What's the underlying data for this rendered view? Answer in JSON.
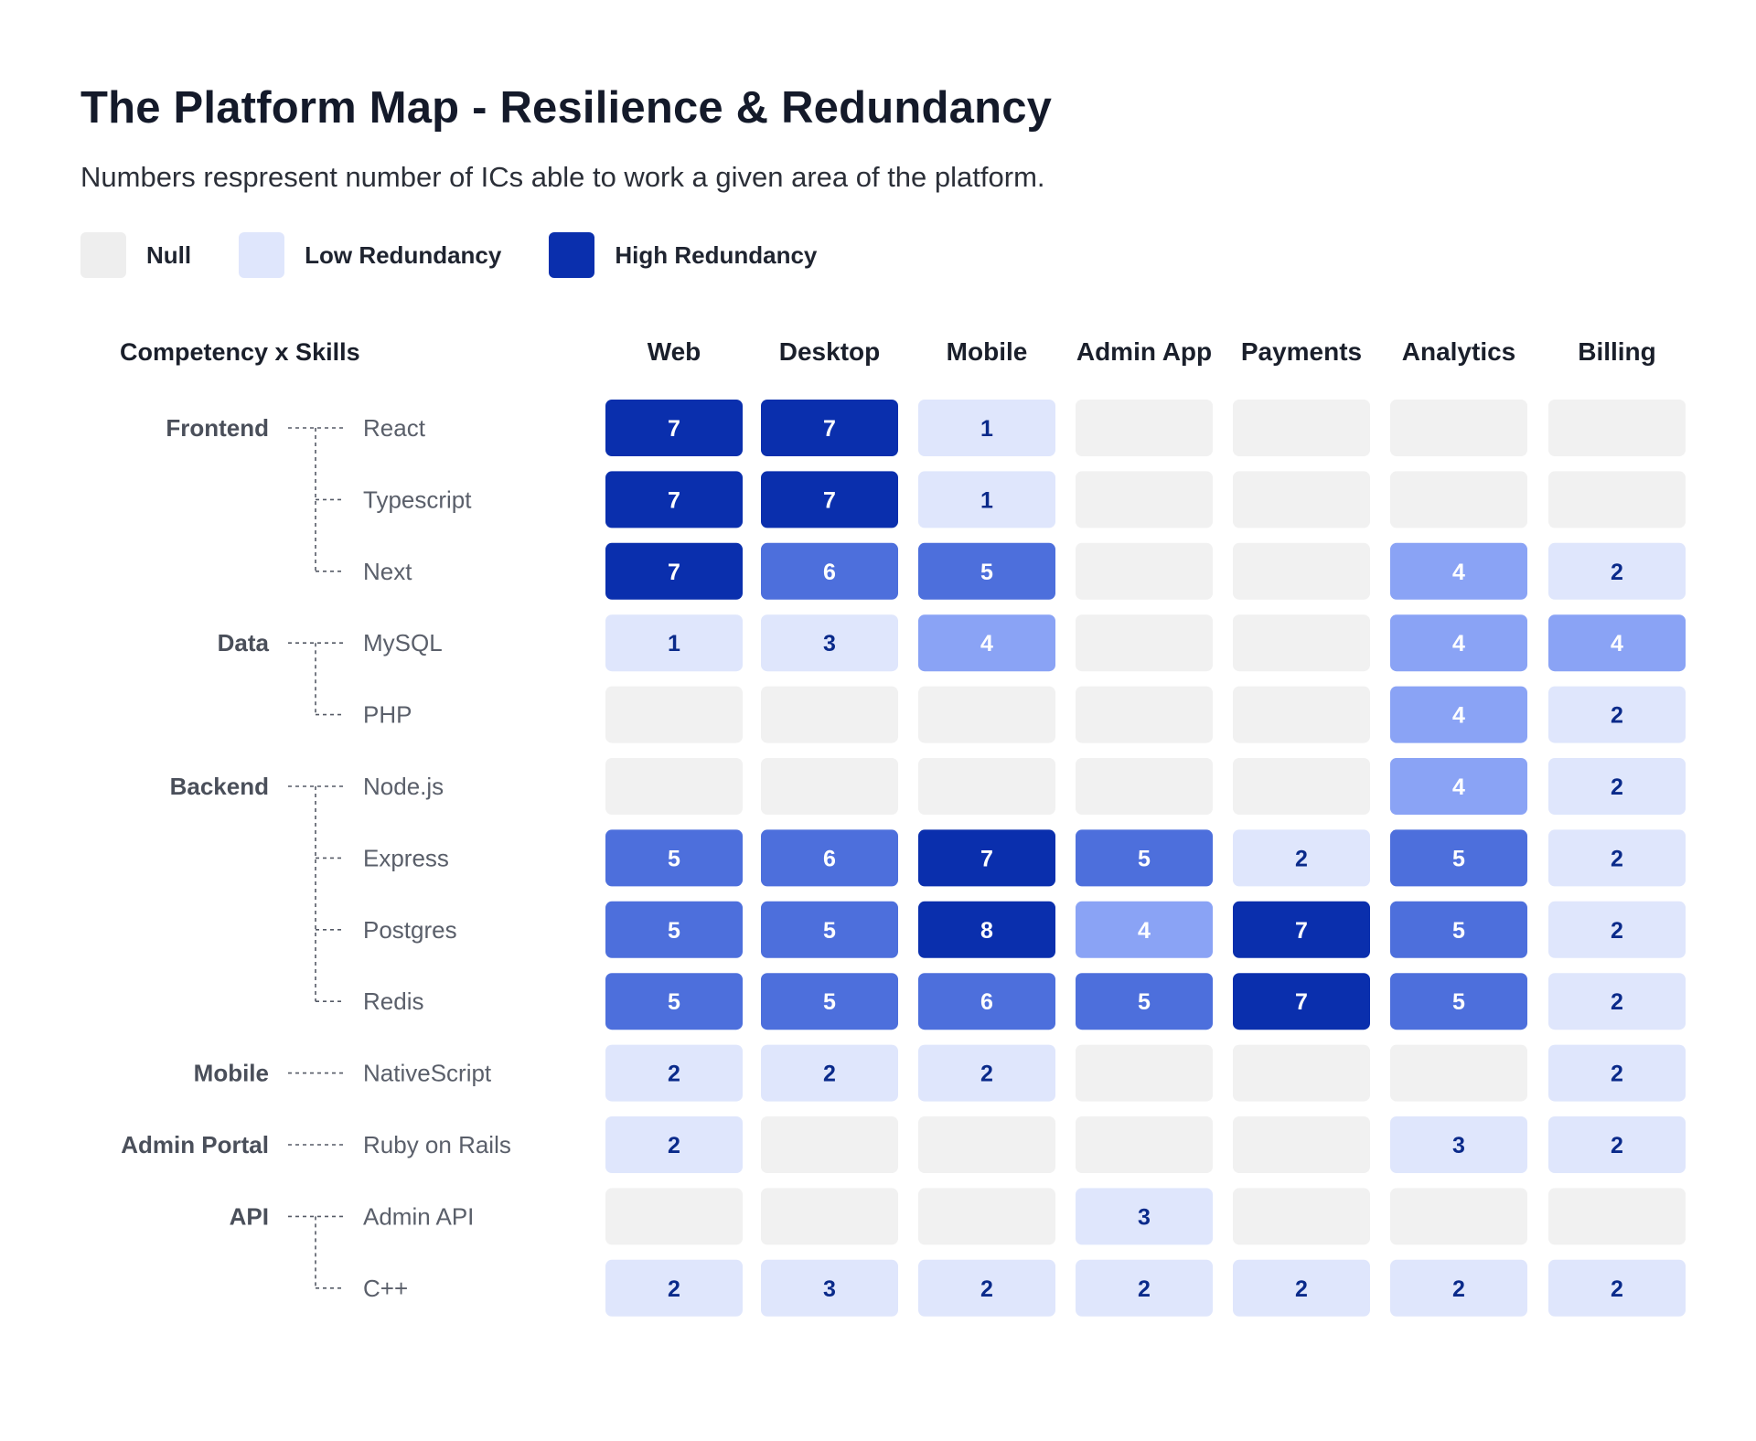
{
  "header": {
    "title": "The Platform Map - Resilience & Redundancy",
    "subtitle": "Numbers respresent number of ICs able to work a given area of the platform."
  },
  "legend": {
    "items": [
      {
        "label": "Null",
        "color": "#eeeeee"
      },
      {
        "label": "Low Redundancy",
        "color": "#dfe6fc"
      },
      {
        "label": "High Redundancy",
        "color": "#0a2fad"
      }
    ]
  },
  "colors": {
    "null": "#f1f1f1",
    "scale": [
      "#dfe6fc",
      "#dfe6fc",
      "#dfe6fc",
      "#8aa3f5",
      "#4d6fdc",
      "#4d6fdc",
      "#0a2fad",
      "#0a2fad"
    ],
    "dark_text": "#0a2a8a",
    "light_text": "#ffffff"
  },
  "chart_data": {
    "type": "heatmap",
    "title": "The Platform Map - Resilience & Redundancy",
    "corner_label": "Competency x Skills",
    "columns": [
      "Web",
      "Desktop",
      "Mobile",
      "Admin App",
      "Payments",
      "Analytics",
      "Billing"
    ],
    "groups": [
      {
        "name": "Frontend",
        "rows": [
          "React",
          "Typescript",
          "Next"
        ]
      },
      {
        "name": "Data",
        "rows": [
          "MySQL",
          "PHP"
        ]
      },
      {
        "name": "Backend",
        "rows": [
          "Node.js",
          "Express",
          "Postgres",
          "Redis"
        ]
      },
      {
        "name": "Mobile",
        "rows": [
          "NativeScript"
        ]
      },
      {
        "name": "Admin Portal",
        "rows": [
          "Ruby on Rails"
        ]
      },
      {
        "name": "API",
        "rows": [
          "Admin API",
          "C++"
        ]
      }
    ],
    "rows": [
      "React",
      "Typescript",
      "Next",
      "MySQL",
      "PHP",
      "Node.js",
      "Express",
      "Postgres",
      "Redis",
      "NativeScript",
      "Ruby on Rails",
      "Admin API",
      "C++"
    ],
    "values": [
      [
        7,
        7,
        1,
        null,
        null,
        null,
        null
      ],
      [
        7,
        7,
        1,
        null,
        null,
        null,
        null
      ],
      [
        7,
        6,
        5,
        null,
        null,
        4,
        2
      ],
      [
        1,
        3,
        4,
        null,
        null,
        4,
        4
      ],
      [
        null,
        null,
        null,
        null,
        null,
        4,
        2
      ],
      [
        null,
        null,
        null,
        null,
        null,
        4,
        2
      ],
      [
        5,
        6,
        7,
        5,
        2,
        5,
        2
      ],
      [
        5,
        5,
        8,
        4,
        7,
        5,
        2
      ],
      [
        5,
        5,
        6,
        5,
        7,
        5,
        2
      ],
      [
        2,
        2,
        2,
        null,
        null,
        null,
        2
      ],
      [
        2,
        null,
        null,
        null,
        null,
        3,
        2
      ],
      [
        null,
        null,
        null,
        3,
        null,
        null,
        null
      ],
      [
        2,
        3,
        2,
        2,
        2,
        2,
        2
      ]
    ]
  }
}
